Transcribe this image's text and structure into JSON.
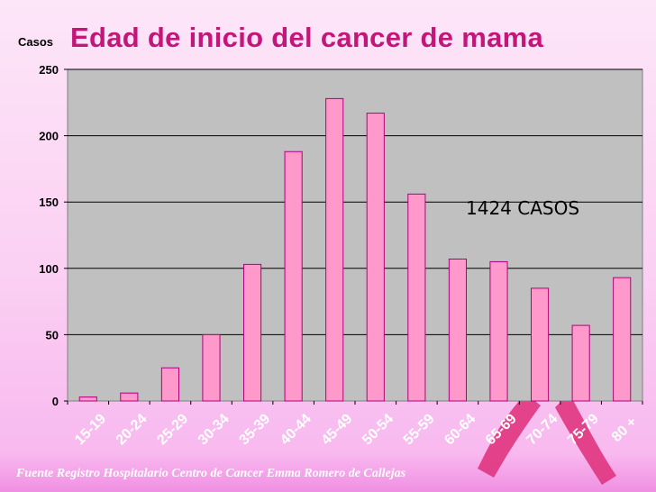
{
  "colors": {
    "title": "#c4167a",
    "bar_fill": "#ff99cc",
    "bar_stroke": "#b0007a",
    "plot_bg": "#c0c0c0",
    "ribbon": "#e0357f"
  },
  "annotation": "1424 CASOS",
  "source": "Fuente Registro Hospitalario Centro de Cancer Emma Romero de Callejas",
  "decoration": {
    "ribbon": "pink-ribbon-icon"
  },
  "chart_data": {
    "type": "bar",
    "title": "Edad de inicio del cancer de mama",
    "xlabel": "",
    "ylabel": "Casos",
    "ylim": [
      0,
      250
    ],
    "yticks": [
      0,
      50,
      100,
      150,
      200,
      250
    ],
    "grid": true,
    "legend": "none",
    "categories": [
      "15-19",
      "20-24",
      "25-29",
      "30-34",
      "35-39",
      "40-44",
      "45-49",
      "50-54",
      "55-59",
      "60-64",
      "65-69",
      "70-74",
      "75-79",
      "80 +"
    ],
    "values": [
      3,
      6,
      25,
      50,
      103,
      188,
      228,
      217,
      156,
      107,
      105,
      85,
      57,
      93
    ]
  }
}
